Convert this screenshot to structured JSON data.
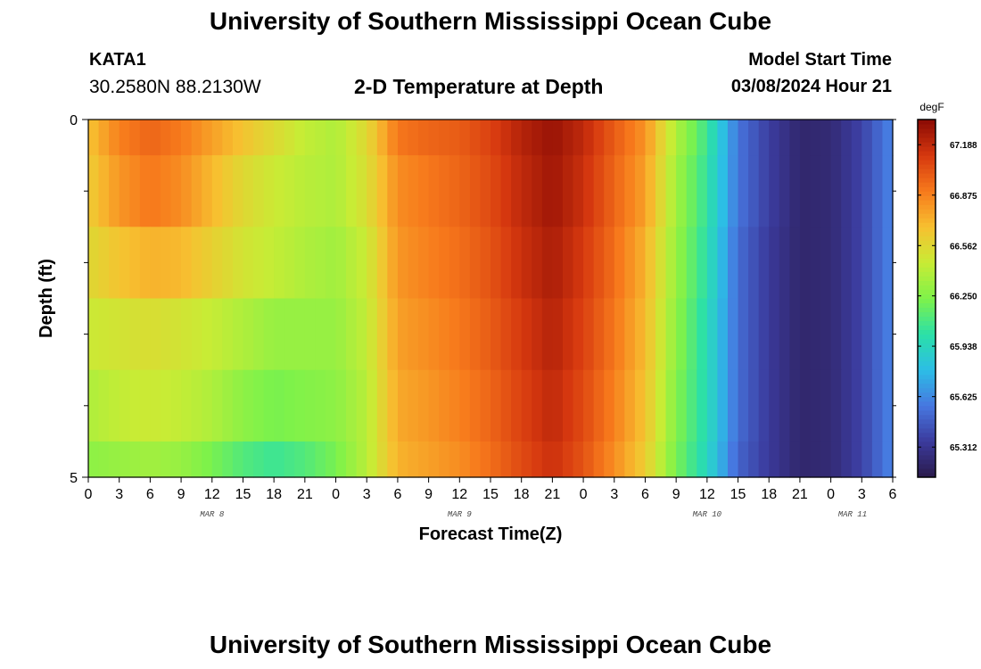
{
  "page": {
    "title": "University of Southern Mississippi Ocean Cube",
    "footer_title": "University of Southern Mississippi Ocean Cube",
    "station_id": "KATA1",
    "coordinates": "30.2580N  88.2130W",
    "subtitle": "2-D Temperature at Depth",
    "model_start_label": "Model Start Time",
    "model_start_value": "03/08/2024 Hour 21"
  },
  "chart_data": {
    "type": "heatmap",
    "title": "2-D Temperature at Depth",
    "xlabel": "Forecast Time(Z)",
    "ylabel": "Depth (ft)",
    "x_tick_labels": [
      "0",
      "3",
      "6",
      "9",
      "12",
      "15",
      "18",
      "21",
      "0",
      "3",
      "6",
      "9",
      "12",
      "15",
      "18",
      "21",
      "0",
      "3",
      "6",
      "9",
      "12",
      "15",
      "18",
      "21",
      "0",
      "3",
      "6"
    ],
    "x_day_labels": [
      {
        "label": "MAR 8",
        "tick_index": 4
      },
      {
        "label": "MAR 9",
        "tick_index": 12
      },
      {
        "label": "MAR 10",
        "tick_index": 20
      },
      {
        "label": "MAR 11",
        "tick_index": 24.7
      }
    ],
    "y_tick_labels": [
      "0",
      "5"
    ],
    "ylim": [
      0,
      5
    ],
    "colorbar": {
      "unit": "degF",
      "tick_labels": [
        "67.188",
        "66.875",
        "66.562",
        "66.250",
        "65.938",
        "65.625",
        "65.312"
      ],
      "vmin": 65.125,
      "vmax": 67.344,
      "colors": [
        "#2a1a4a",
        "#3b3a9c",
        "#4777e0",
        "#2cbde6",
        "#2be0a8",
        "#7ef24a",
        "#c8ec35",
        "#f7c030",
        "#f77a1c",
        "#d6380f",
        "#8a0a04"
      ]
    },
    "time_hours": [
      0,
      3,
      6,
      9,
      12,
      15,
      18,
      21,
      24,
      27,
      30,
      33,
      36,
      39,
      42,
      45,
      48,
      51,
      54,
      57,
      60,
      63,
      66,
      69,
      72,
      75,
      78
    ],
    "depth_layer_bounds_ft": [
      0,
      0.5,
      1.5,
      2.5,
      3.5,
      4.5,
      5
    ],
    "values_degF": [
      [
        66.66,
        66.88,
        66.97,
        66.9,
        66.78,
        66.66,
        66.55,
        66.44,
        66.38,
        66.56,
        66.91,
        66.97,
        67.0,
        67.09,
        67.22,
        67.3,
        67.19,
        67.0,
        66.82,
        66.38,
        66.06,
        65.56,
        65.36,
        65.22,
        65.24,
        65.38,
        65.62
      ],
      [
        66.62,
        66.81,
        66.91,
        66.84,
        66.7,
        66.56,
        66.47,
        66.41,
        66.38,
        66.53,
        66.84,
        66.91,
        66.97,
        67.06,
        67.19,
        67.28,
        67.16,
        66.97,
        66.78,
        66.34,
        66.03,
        65.56,
        65.36,
        65.22,
        65.24,
        65.38,
        65.62
      ],
      [
        66.56,
        66.66,
        66.72,
        66.7,
        66.6,
        66.5,
        66.44,
        66.38,
        66.34,
        66.47,
        66.81,
        66.88,
        66.94,
        67.03,
        67.16,
        67.25,
        67.12,
        66.94,
        66.72,
        66.31,
        66.0,
        65.53,
        65.34,
        65.22,
        65.24,
        65.38,
        65.62
      ],
      [
        66.47,
        66.5,
        66.53,
        66.5,
        66.45,
        66.38,
        66.31,
        66.31,
        66.31,
        66.44,
        66.78,
        66.84,
        66.91,
        67.0,
        67.12,
        67.22,
        67.09,
        66.91,
        66.69,
        66.28,
        65.97,
        65.53,
        65.34,
        65.22,
        65.24,
        65.38,
        65.62
      ],
      [
        66.38,
        66.44,
        66.47,
        66.44,
        66.38,
        66.28,
        66.22,
        66.25,
        66.28,
        66.41,
        66.75,
        66.81,
        66.88,
        66.97,
        67.09,
        67.19,
        67.06,
        66.88,
        66.66,
        66.25,
        65.97,
        65.53,
        65.34,
        65.22,
        65.24,
        65.38,
        65.62
      ],
      [
        66.28,
        66.31,
        66.34,
        66.31,
        66.22,
        66.12,
        66.06,
        66.12,
        66.22,
        66.41,
        66.72,
        66.78,
        66.84,
        66.94,
        67.06,
        67.16,
        67.03,
        66.84,
        66.62,
        66.22,
        65.94,
        65.5,
        65.34,
        65.22,
        65.24,
        65.38,
        65.62
      ]
    ],
    "grid": false,
    "legend": "colorbar-right"
  }
}
